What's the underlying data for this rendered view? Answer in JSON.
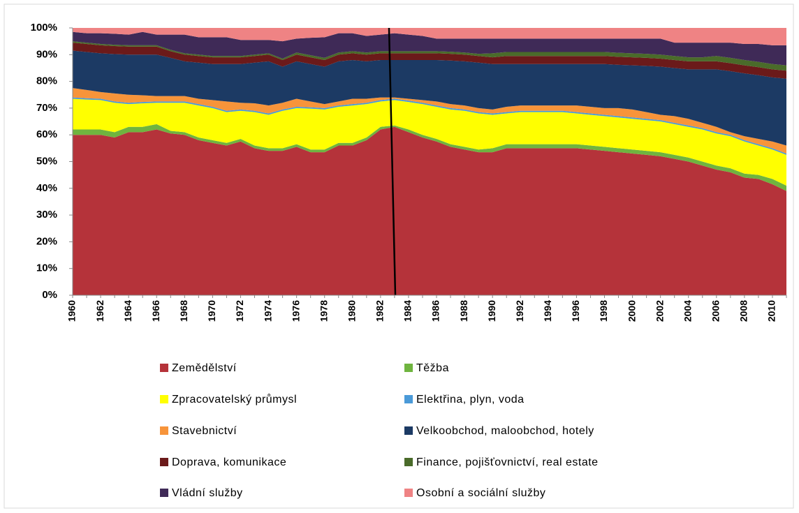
{
  "chart_data": {
    "type": "stacked_area",
    "categories": [
      "1960",
      null,
      "1962",
      null,
      "1964",
      null,
      "1966",
      null,
      "1968",
      null,
      "1970",
      null,
      "1972",
      null,
      "1974",
      null,
      "1976",
      null,
      "1978",
      null,
      "1980",
      null,
      "1982",
      null,
      "1984",
      null,
      "1986",
      null,
      "1988",
      null,
      "1990",
      null,
      "1992",
      null,
      "1994",
      null,
      "1996",
      null,
      "1998",
      null,
      "2000",
      null,
      "2002",
      null,
      "2004",
      null,
      "2006",
      null,
      "2008",
      null,
      "2010",
      null
    ],
    "ylim": [
      0,
      100
    ],
    "yticks": [
      {
        "value": 0,
        "label": "0%"
      },
      {
        "value": 10,
        "label": "10%"
      },
      {
        "value": 20,
        "label": "20%"
      },
      {
        "value": 30,
        "label": "30%"
      },
      {
        "value": 40,
        "label": "40%"
      },
      {
        "value": 50,
        "label": "50%"
      },
      {
        "value": 60,
        "label": "60%"
      },
      {
        "value": 70,
        "label": "70%"
      },
      {
        "value": 80,
        "label": "80%"
      },
      {
        "value": 90,
        "label": "90%"
      },
      {
        "value": 100,
        "label": "100%"
      }
    ],
    "grid": false,
    "legend": "bottom",
    "series": [
      {
        "name": "Zemědělství",
        "color": "#b5333a",
        "values": [
          60,
          60,
          60,
          59,
          61,
          61,
          62,
          60.5,
          60,
          58,
          57,
          56,
          57.5,
          55,
          54,
          54,
          55.5,
          53.5,
          53.5,
          56,
          56,
          58,
          62,
          63,
          61,
          59,
          57.5,
          55.5,
          54.5,
          53.5,
          53.5,
          55,
          55,
          55,
          55,
          55,
          55,
          54.5,
          54,
          53.5,
          53,
          52.5,
          52,
          51,
          50,
          48.5,
          47,
          46,
          44,
          43.5,
          41.5,
          39
        ]
      },
      {
        "name": "Těžba",
        "color": "#6fb43f",
        "values": [
          2,
          2,
          2,
          2,
          2,
          2,
          2,
          1,
          1,
          1,
          1,
          1,
          1,
          1,
          1,
          1,
          1,
          1,
          1,
          1,
          1,
          1,
          1,
          0.5,
          1,
          1,
          1,
          1,
          1,
          1,
          1.5,
          1.5,
          1.5,
          1.5,
          1.5,
          1.5,
          1.5,
          1.5,
          1.5,
          1.5,
          1.5,
          1.5,
          1.5,
          1.5,
          1.5,
          1.5,
          1.5,
          1.5,
          1.5,
          1.5,
          2,
          2
        ]
      },
      {
        "name": "Zpracovatelský průmysl",
        "color": "#ffff00",
        "values": [
          11.5,
          11.2,
          11,
          11,
          8.5,
          8.8,
          8,
          10.5,
          11,
          12,
          12,
          11.5,
          10.5,
          12.5,
          12.5,
          14,
          13.5,
          15.3,
          15,
          13.5,
          14,
          12.5,
          9.5,
          9.5,
          10.3,
          11.5,
          12,
          13,
          13.5,
          13.5,
          12.5,
          11.5,
          12,
          12,
          12,
          12,
          11.5,
          11.5,
          11.5,
          11.5,
          11.5,
          11.5,
          11.5,
          11.5,
          11.5,
          12,
          12,
          12,
          12,
          11,
          11,
          11.5
        ]
      },
      {
        "name": "Elektřina, plyn, voda",
        "color": "#4a9ad8",
        "values": [
          0.5,
          0.5,
          0.5,
          0.5,
          0.5,
          0.5,
          0.5,
          0.5,
          0.5,
          0.5,
          0.5,
          0.5,
          0.5,
          0.5,
          0.5,
          0.5,
          0.5,
          0.5,
          0.5,
          0.5,
          0.5,
          0.5,
          0.5,
          0.5,
          0.5,
          0.5,
          0.5,
          0.5,
          0.5,
          0.5,
          0.5,
          0.5,
          0.5,
          0.5,
          0.5,
          0.5,
          0.5,
          0.5,
          0.5,
          0.5,
          0.5,
          0.5,
          0.5,
          0.5,
          0.5,
          0.5,
          0.5,
          0.5,
          0.5,
          0.5,
          0.5,
          0.5
        ]
      },
      {
        "name": "Stavebnictví",
        "color": "#f7943a",
        "values": [
          3.5,
          3.1,
          2.5,
          3,
          3,
          2.5,
          2,
          2,
          2,
          2,
          2.5,
          3.5,
          2.5,
          2.8,
          3,
          2.5,
          3,
          2.2,
          1.5,
          1.5,
          2,
          1.5,
          1,
          0.5,
          0.7,
          1,
          1.5,
          1.5,
          1.5,
          1.5,
          1.5,
          2,
          2,
          2,
          2,
          2,
          2.5,
          2.5,
          2.5,
          3,
          3,
          2.5,
          2,
          2.5,
          2.5,
          2,
          2,
          1,
          1.5,
          2,
          2.5,
          3
        ]
      },
      {
        "name": "Velkoobchod, maloobchod, hotely",
        "color": "#1c3a64",
        "values": [
          14,
          14.2,
          14.5,
          14.7,
          15,
          15.2,
          15.5,
          14.3,
          13,
          13.5,
          13.5,
          14,
          14.5,
          15.2,
          16.5,
          13.5,
          14,
          14,
          14,
          15,
          14.5,
          14,
          14,
          14,
          14.5,
          15,
          15.5,
          16.3,
          16.5,
          17,
          17,
          16,
          15.5,
          15.5,
          15.5,
          15.5,
          15.5,
          16,
          16.5,
          16.2,
          16.5,
          17.3,
          18,
          18,
          18.5,
          20,
          21.5,
          22.8,
          23.5,
          23.8,
          24,
          25
        ]
      },
      {
        "name": "Doprava, komunikace",
        "color": "#6b1a1a",
        "values": [
          3,
          3,
          3,
          3,
          3,
          3,
          3,
          2.5,
          2.5,
          2.5,
          2.5,
          2.5,
          2.5,
          2.5,
          2.5,
          2.5,
          2.5,
          2.5,
          2.5,
          2.5,
          2.5,
          2.5,
          2.5,
          2.5,
          2.5,
          2.5,
          2.5,
          2.5,
          2.5,
          2.5,
          2.5,
          3,
          3,
          3,
          3,
          3,
          3,
          3,
          3,
          3,
          3,
          3,
          3,
          3,
          3,
          3,
          3,
          3,
          3,
          3,
          3,
          3
        ]
      },
      {
        "name": "Finance, pojišťovnictví, real estate",
        "color": "#4a6b2a",
        "values": [
          0.5,
          0.5,
          0.5,
          0.5,
          0.5,
          0.5,
          0.5,
          0.5,
          0.5,
          0.5,
          0.5,
          0.5,
          0.5,
          0.5,
          0.5,
          0.5,
          0.8,
          0.8,
          0.8,
          0.8,
          0.8,
          0.8,
          0.8,
          0.8,
          0.8,
          0.8,
          0.8,
          0.8,
          0.8,
          0.8,
          1.5,
          1.5,
          1.5,
          1.5,
          1.5,
          1.5,
          1.5,
          1.5,
          1.5,
          1.5,
          1.5,
          1.5,
          1.5,
          1.5,
          1.5,
          1.5,
          2,
          2,
          2,
          2,
          2,
          2
        ]
      },
      {
        "name": "Vládní služby",
        "color": "#3f2a57",
        "values": [
          3.5,
          3.5,
          4,
          4.1,
          4,
          5,
          4,
          5.7,
          7,
          6.5,
          7,
          7,
          6,
          5.5,
          5,
          6.5,
          5.2,
          6.5,
          7.7,
          7.2,
          6.7,
          6.2,
          6.2,
          6.7,
          6.2,
          5.7,
          4.7,
          4.9,
          5.2,
          5.7,
          5.5,
          5,
          5,
          5,
          5,
          5,
          5,
          5,
          5,
          5.3,
          5.5,
          5.7,
          6,
          5,
          5.5,
          5.5,
          5,
          5.7,
          6,
          6.7,
          7,
          7.5
        ]
      },
      {
        "name": "Osobní a sociální služby",
        "color": "#ef8384",
        "values": [
          1.5,
          2,
          2,
          2.2,
          2.5,
          1.5,
          2.5,
          2.5,
          2.5,
          3.5,
          3.5,
          3.5,
          4.5,
          4.5,
          4.5,
          5,
          4,
          3.7,
          3.5,
          2,
          2,
          3,
          2.5,
          2,
          2.5,
          3,
          4,
          4,
          4,
          4,
          4,
          4,
          4,
          4,
          4,
          4,
          4,
          4,
          4,
          4,
          4,
          4,
          4,
          5.5,
          5.5,
          5.5,
          5.5,
          5.5,
          6,
          6,
          6.5,
          6.5
        ]
      }
    ]
  }
}
